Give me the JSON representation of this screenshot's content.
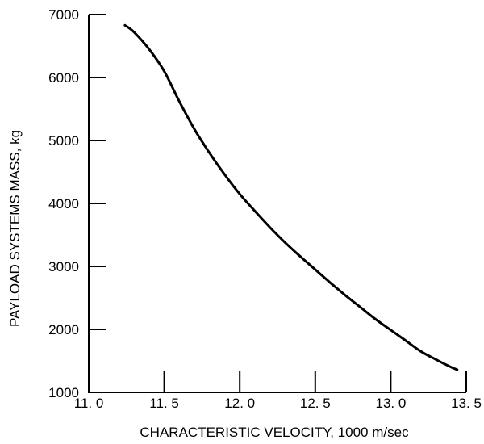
{
  "chart_data": {
    "type": "line",
    "title": "",
    "xlabel": "CHARACTERISTIC VELOCITY, 1000 m/sec",
    "ylabel": "PAYLOAD SYSTEMS MASS, kg",
    "xlim": [
      11.0,
      13.5
    ],
    "ylim": [
      1000,
      7000
    ],
    "x_ticks": [
      11.0,
      11.5,
      12.0,
      12.5,
      13.0,
      13.5
    ],
    "x_tick_labels": [
      "11. 0",
      "11. 5",
      "12. 0",
      "12. 5",
      "13. 0",
      "13. 5"
    ],
    "y_ticks": [
      1000,
      2000,
      3000,
      4000,
      5000,
      6000,
      7000
    ],
    "y_tick_labels": [
      "1000",
      "2000",
      "3000",
      "4000",
      "5000",
      "6000",
      "7000"
    ],
    "grid": false,
    "series": [
      {
        "x": [
          11.24,
          11.3,
          11.4,
          11.5,
          11.6,
          11.7,
          11.8,
          11.9,
          12.0,
          12.1,
          12.2,
          12.3,
          12.4,
          12.5,
          12.6,
          12.7,
          12.8,
          12.9,
          13.0,
          13.1,
          13.2,
          13.3,
          13.4,
          13.44
        ],
        "values": [
          6830,
          6720,
          6450,
          6100,
          5620,
          5180,
          4800,
          4460,
          4150,
          3880,
          3620,
          3380,
          3160,
          2950,
          2740,
          2540,
          2350,
          2160,
          1990,
          1820,
          1650,
          1520,
          1400,
          1360
        ]
      }
    ]
  }
}
